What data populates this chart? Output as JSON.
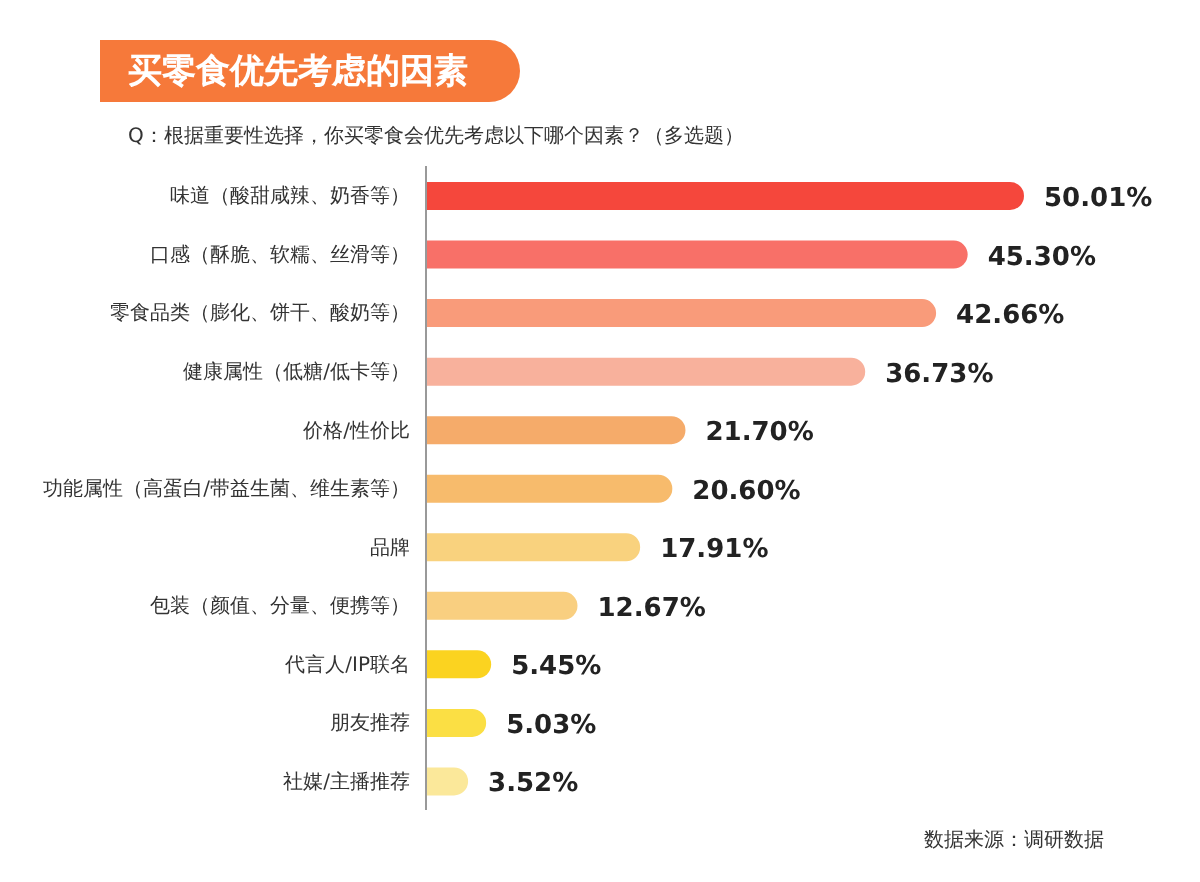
{
  "chart_data": {
    "type": "bar",
    "orientation": "horizontal",
    "title": "买零食优先考虑的因素",
    "subtitle": "Q：根据重要性选择，你买零食会优先考虑以下哪个因素？（多选题）",
    "categories": [
      "味道（酸甜咸辣、奶香等）",
      "口感（酥脆、软糯、丝滑等）",
      "零食品类（膨化、饼干、酸奶等）",
      "健康属性（低糖/低卡等）",
      "价格/性价比",
      "功能属性（高蛋白/带益生菌、维生素等）",
      "品牌",
      "包装（颜值、分量、便携等）",
      "代言人/IP联名",
      "朋友推荐",
      "社媒/主播推荐"
    ],
    "values": [
      50.01,
      45.3,
      42.66,
      36.73,
      21.7,
      20.6,
      17.91,
      12.67,
      5.45,
      5.03,
      3.52
    ],
    "value_labels": [
      "50.01%",
      "45.30%",
      "42.66%",
      "36.73%",
      "21.70%",
      "20.60%",
      "17.91%",
      "12.67%",
      "5.45%",
      "5.03%",
      "3.52%"
    ],
    "colors": [
      "#f5473c",
      "#f87068",
      "#f99b7a",
      "#f8b19c",
      "#f5ab6a",
      "#f7bb6c",
      "#f9d27e",
      "#f9cf80",
      "#fbd320",
      "#fbdf44",
      "#fbe89a"
    ],
    "annotations": [
      "数据来源：调研数据"
    ]
  }
}
